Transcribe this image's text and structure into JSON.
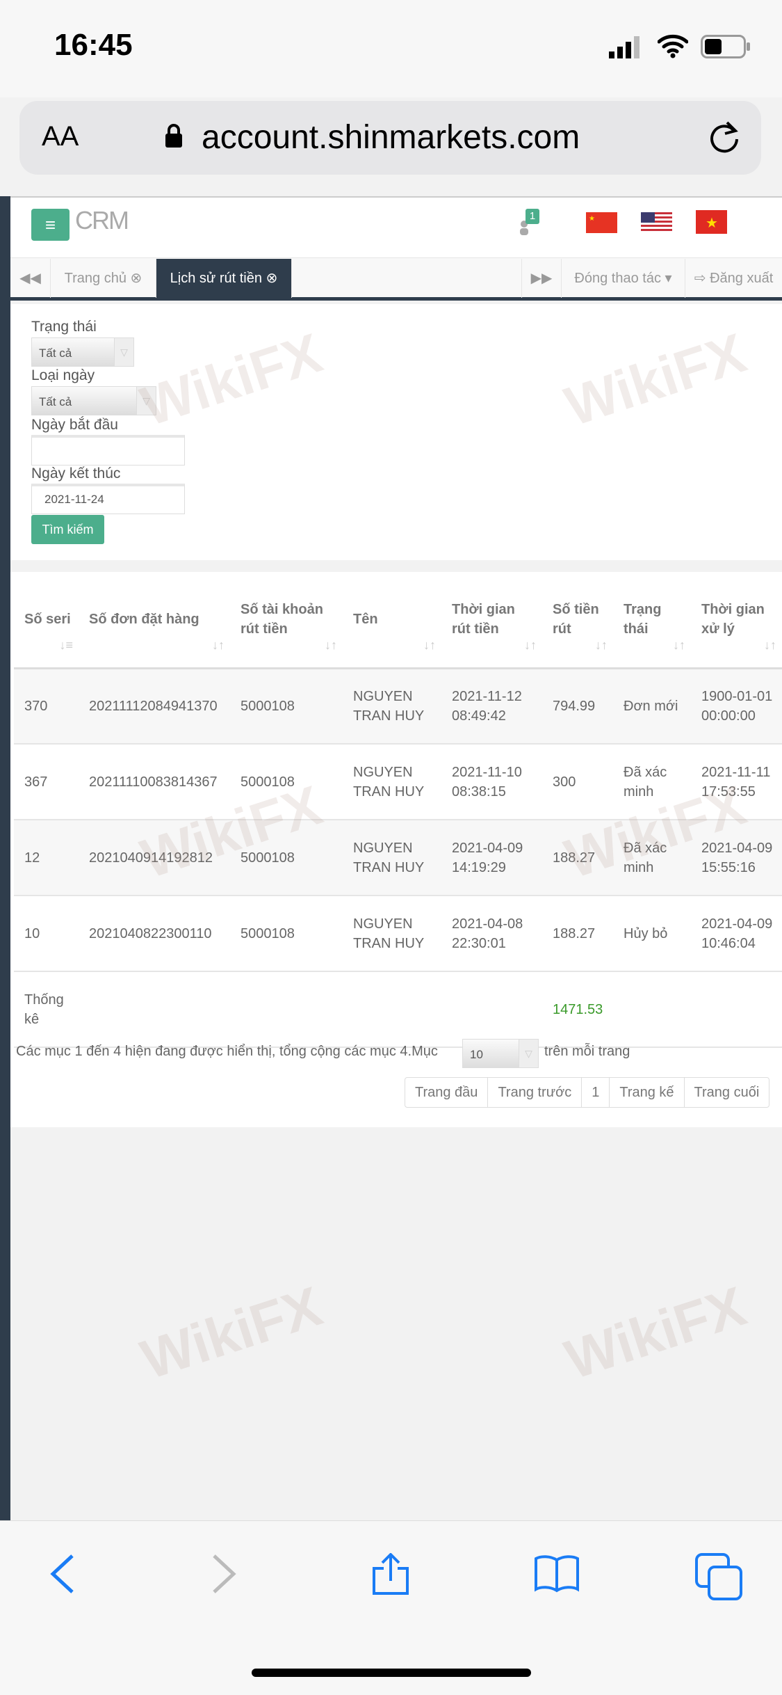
{
  "status_bar": {
    "time": "16:45"
  },
  "browser": {
    "text_size": "AA",
    "url": "account.shinmarkets.com"
  },
  "header": {
    "logo": "CRM",
    "notification_count": "1",
    "flags": [
      "china-flag",
      "usa-flag",
      "vietnam-flag"
    ]
  },
  "tabs": {
    "items": [
      {
        "label": "Trang chủ"
      },
      {
        "label": "Lịch sử rút tiền",
        "active": true
      }
    ],
    "close_ops": "Đóng thao tác",
    "logout": "Đăng xuất"
  },
  "filters": {
    "status_label": "Trạng thái",
    "status_value": "Tất cả",
    "date_type_label": "Loại ngày",
    "date_type_value": "Tất cả",
    "start_label": "Ngày bắt đầu",
    "start_value": "",
    "end_label": "Ngày kết thúc",
    "end_value": "2021-11-24",
    "search": "Tìm kiếm"
  },
  "table": {
    "headers": [
      "Số seri",
      "Số đơn đặt hàng",
      "Số tài khoản rút tiền",
      "Tên",
      "Thời gian rút tiền",
      "Số tiền rút",
      "Trạng thái",
      "Thời gian xử lý"
    ],
    "rows": [
      [
        "370",
        "20211112084941370",
        "5000108",
        "NGUYEN TRAN HUY",
        "2021-11-12 08:49:42",
        "794.99",
        "Đơn mới",
        "1900-01-01 00:00:00"
      ],
      [
        "367",
        "20211110083814367",
        "5000108",
        "NGUYEN TRAN HUY",
        "2021-11-10 08:38:15",
        "300",
        "Đã xác minh",
        "2021-11-11 17:53:55"
      ],
      [
        "12",
        "2021040914192812",
        "5000108",
        "NGUYEN TRAN HUY",
        "2021-04-09 14:19:29",
        "188.27",
        "Đã xác minh",
        "2021-04-09 15:55:16"
      ],
      [
        "10",
        "2021040822300110",
        "5000108",
        "NGUYEN TRAN HUY",
        "2021-04-08 22:30:01",
        "188.27",
        "Hủy bỏ",
        "2021-04-09 10:46:04"
      ]
    ],
    "summary_label": "Thống kê",
    "summary_total": "1471.53",
    "total_color": "#3a9a2a"
  },
  "pagination": {
    "info": "Các mục 1 đến 4 hiện đang được hiển thị, tổng cộng các mục 4.Mục",
    "per_page": "10",
    "per_page_suffix": "trên mỗi trang",
    "first": "Trang đầu",
    "prev": "Trang trước",
    "current": "1",
    "next": "Trang kế",
    "last": "Trang cuối"
  },
  "watermark": "WikiFX",
  "colors": {
    "accent": "#4cae8c",
    "dark": "#2f3d4c"
  }
}
